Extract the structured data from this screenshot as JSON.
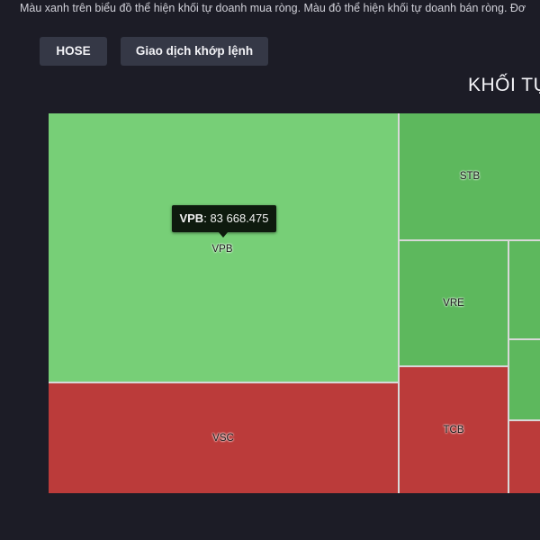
{
  "note": "Màu xanh trên biểu đồ thể hiện khối tự doanh mua ròng. Màu đỏ thể hiện khối tự doanh bán ròng. Đơ",
  "buttons": {
    "exchange": "HOSE",
    "trade_type": "Giao dịch khớp lệnh"
  },
  "title": "KHỐI TỰ",
  "colors": {
    "net_buy_light": "#77cf77",
    "net_buy": "#5db85d",
    "net_sell": "#bb3b3a"
  },
  "chart_data": {
    "type": "treemap",
    "tiles": [
      {
        "label": "VPB",
        "side": "buy"
      },
      {
        "label": "VSC",
        "side": "sell"
      },
      {
        "label": "STB",
        "side": "buy"
      },
      {
        "label": "VRE",
        "side": "buy"
      },
      {
        "label": "TCB",
        "side": "sell"
      },
      {
        "label": "",
        "side": "buy"
      },
      {
        "label": "",
        "side": "buy"
      },
      {
        "label": "",
        "side": "sell"
      }
    ],
    "tooltip": {
      "label": "VPB",
      "value": "83 668.475"
    }
  }
}
